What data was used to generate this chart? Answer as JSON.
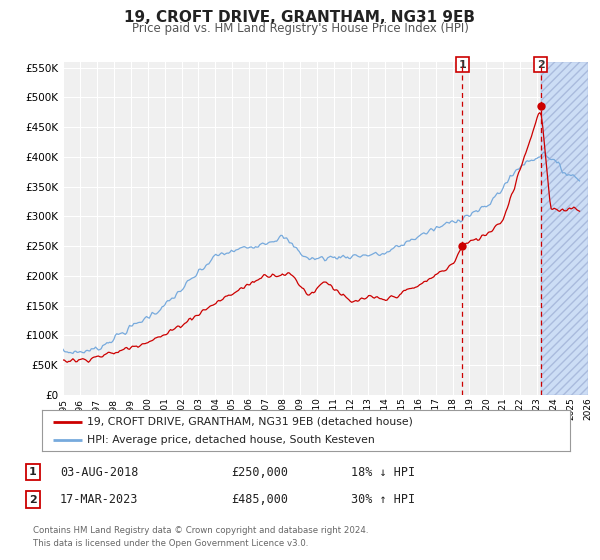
{
  "title": "19, CROFT DRIVE, GRANTHAM, NG31 9EB",
  "subtitle": "Price paid vs. HM Land Registry's House Price Index (HPI)",
  "legend_label_red": "19, CROFT DRIVE, GRANTHAM, NG31 9EB (detached house)",
  "legend_label_blue": "HPI: Average price, detached house, South Kesteven",
  "sale1_label": "1",
  "sale1_date": "03-AUG-2018",
  "sale1_price": "£250,000",
  "sale1_hpi": "18% ↓ HPI",
  "sale1_year": 2018.58,
  "sale1_value": 250000,
  "sale2_label": "2",
  "sale2_date": "17-MAR-2023",
  "sale2_price": "£485,000",
  "sale2_hpi": "30% ↑ HPI",
  "sale2_year": 2023.21,
  "sale2_value": 485000,
  "footnote1": "Contains HM Land Registry data © Crown copyright and database right 2024.",
  "footnote2": "This data is licensed under the Open Government Licence v3.0.",
  "xmin": 1995,
  "xmax": 2026,
  "ymin": 0,
  "ymax": 550000,
  "background_color": "#ffffff",
  "plot_bg_color": "#f0f0f0",
  "grid_color": "#ffffff",
  "red_color": "#cc0000",
  "blue_color": "#77aadd",
  "vline_color": "#cc0000",
  "shade_color": "#ccddf5"
}
